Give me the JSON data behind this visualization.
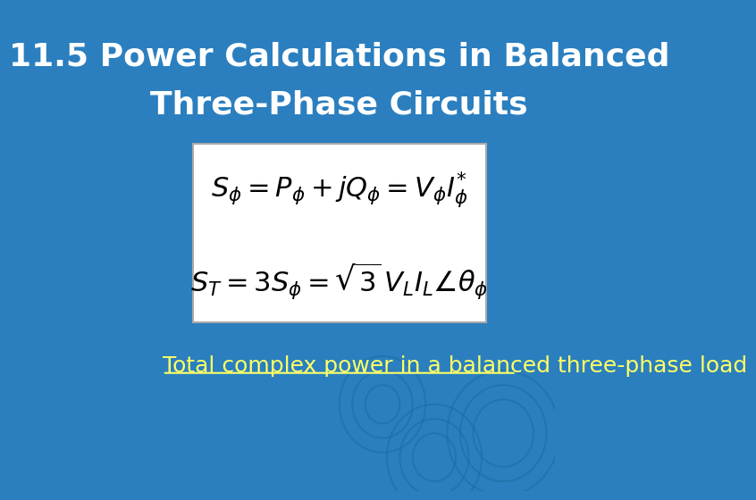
{
  "title_line1": "11.5 Power Calculations in Balanced",
  "title_line2": "Three-Phase Circuits",
  "title_color": "#FFFFFF",
  "title_fontsize": 26,
  "bg_color": "#2B7FBF",
  "formula1": "$S_{\\phi} = P_{\\phi} + jQ_{\\phi} = V_{\\phi}I_{\\phi}^{*}$",
  "formula2": "$S_{T} = 3S_{\\phi} = \\sqrt{3}\\,V_{L}I_{L}\\angle\\theta_{\\phi}$",
  "formula_fontsize": 22,
  "box_facecolor": "#FFFFFF",
  "box_edgecolor": "#AAAAAA",
  "caption": "Total complex power in a balanced three-phase load",
  "caption_color": "#FFFF66",
  "caption_fontsize": 18,
  "caption_underline": true,
  "spiral_color": "#1A6BA0",
  "spiral_alpha": 0.5
}
